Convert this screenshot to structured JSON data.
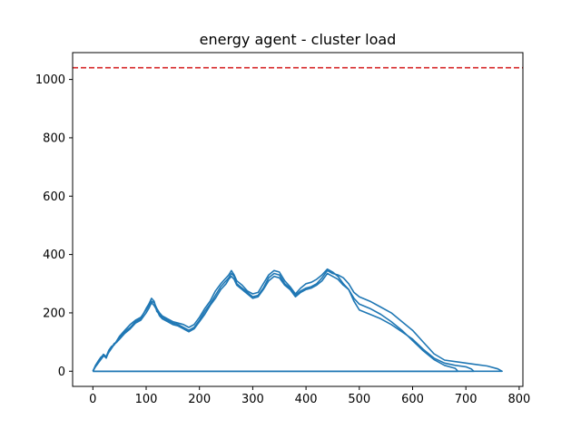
{
  "chart_data": {
    "type": "line",
    "title": "energy agent - cluster load",
    "xlabel": "",
    "ylabel": "",
    "xlim": [
      -38,
      807
    ],
    "ylim": [
      -52,
      1092
    ],
    "xticks": [
      0,
      100,
      200,
      300,
      400,
      500,
      600,
      700,
      800
    ],
    "yticks": [
      0,
      200,
      400,
      600,
      800,
      1000
    ],
    "grid": false,
    "legend": "none",
    "threshold": {
      "y": 1040,
      "color": "#d62728",
      "style": "dashed"
    },
    "series_color": "#1f77b4",
    "series": [
      {
        "x": [
          0,
          5,
          10,
          15,
          20,
          25,
          30,
          35,
          40,
          45,
          50,
          60,
          70,
          80,
          90,
          100,
          105,
          110,
          115,
          120,
          125,
          130,
          140,
          150,
          160,
          170,
          180,
          190,
          200,
          210,
          220,
          230,
          240,
          250,
          255,
          260,
          265,
          270,
          280,
          290,
          300,
          310,
          320,
          330,
          340,
          350,
          360,
          370,
          380,
          390,
          400,
          410,
          420,
          430,
          440,
          450,
          460,
          470,
          480,
          490,
          500,
          520,
          540,
          560,
          580,
          600,
          620,
          640,
          660,
          680,
          700,
          720,
          740,
          760,
          768,
          700,
          600,
          500,
          400,
          300,
          200,
          100,
          0
        ],
        "y": [
          0,
          20,
          35,
          48,
          55,
          45,
          70,
          80,
          95,
          100,
          115,
          135,
          150,
          170,
          180,
          215,
          230,
          250,
          240,
          205,
          195,
          185,
          175,
          165,
          160,
          150,
          140,
          150,
          175,
          205,
          230,
          260,
          290,
          310,
          320,
          335,
          325,
          300,
          285,
          270,
          255,
          260,
          285,
          320,
          335,
          330,
          300,
          285,
          260,
          275,
          285,
          290,
          300,
          320,
          345,
          335,
          330,
          320,
          300,
          270,
          255,
          240,
          220,
          200,
          170,
          140,
          100,
          60,
          38,
          33,
          28,
          23,
          18,
          8,
          0,
          0,
          0,
          0,
          0,
          0,
          0,
          0,
          0
        ]
      },
      {
        "x": [
          0,
          5,
          10,
          15,
          20,
          25,
          30,
          35,
          40,
          45,
          50,
          60,
          70,
          80,
          90,
          100,
          105,
          110,
          115,
          120,
          125,
          130,
          140,
          150,
          160,
          170,
          180,
          190,
          200,
          210,
          220,
          230,
          240,
          250,
          255,
          260,
          265,
          270,
          280,
          290,
          300,
          310,
          320,
          330,
          340,
          350,
          360,
          370,
          380,
          390,
          400,
          410,
          420,
          430,
          440,
          450,
          460,
          470,
          480,
          490,
          500,
          520,
          540,
          560,
          580,
          600,
          620,
          640,
          660,
          680,
          700,
          710,
          715,
          650,
          550,
          450,
          350,
          250,
          150,
          50,
          0
        ],
        "y": [
          0,
          18,
          30,
          45,
          58,
          50,
          72,
          85,
          90,
          105,
          120,
          140,
          160,
          175,
          185,
          210,
          225,
          240,
          235,
          215,
          200,
          190,
          180,
          170,
          165,
          160,
          150,
          160,
          185,
          215,
          240,
          275,
          300,
          320,
          330,
          345,
          330,
          310,
          295,
          275,
          265,
          270,
          300,
          330,
          345,
          340,
          310,
          290,
          265,
          285,
          300,
          305,
          315,
          330,
          350,
          340,
          325,
          300,
          280,
          240,
          210,
          195,
          180,
          160,
          135,
          110,
          75,
          45,
          28,
          20,
          15,
          8,
          0,
          0,
          0,
          0,
          0,
          0,
          0,
          0,
          0
        ]
      },
      {
        "x": [
          0,
          5,
          10,
          15,
          20,
          25,
          30,
          35,
          40,
          45,
          50,
          60,
          70,
          80,
          90,
          100,
          105,
          110,
          115,
          120,
          125,
          130,
          140,
          150,
          160,
          170,
          180,
          190,
          200,
          210,
          220,
          230,
          240,
          250,
          255,
          260,
          265,
          270,
          280,
          290,
          300,
          310,
          320,
          330,
          340,
          350,
          360,
          370,
          380,
          390,
          400,
          410,
          420,
          430,
          440,
          450,
          460,
          470,
          480,
          490,
          500,
          520,
          540,
          560,
          580,
          600,
          620,
          640,
          660,
          680,
          685,
          600,
          500,
          400,
          300,
          200,
          100,
          0
        ],
        "y": [
          0,
          15,
          28,
          40,
          52,
          48,
          65,
          78,
          92,
          100,
          110,
          130,
          145,
          165,
          175,
          200,
          215,
          235,
          225,
          210,
          190,
          180,
          170,
          160,
          155,
          145,
          135,
          145,
          170,
          195,
          225,
          250,
          280,
          300,
          315,
          325,
          315,
          295,
          280,
          265,
          250,
          255,
          280,
          310,
          325,
          320,
          295,
          280,
          255,
          270,
          280,
          285,
          295,
          310,
          335,
          325,
          315,
          295,
          280,
          250,
          230,
          215,
          195,
          170,
          140,
          105,
          70,
          40,
          20,
          10,
          0,
          0,
          0,
          0,
          0,
          0,
          0,
          0
        ]
      }
    ]
  }
}
